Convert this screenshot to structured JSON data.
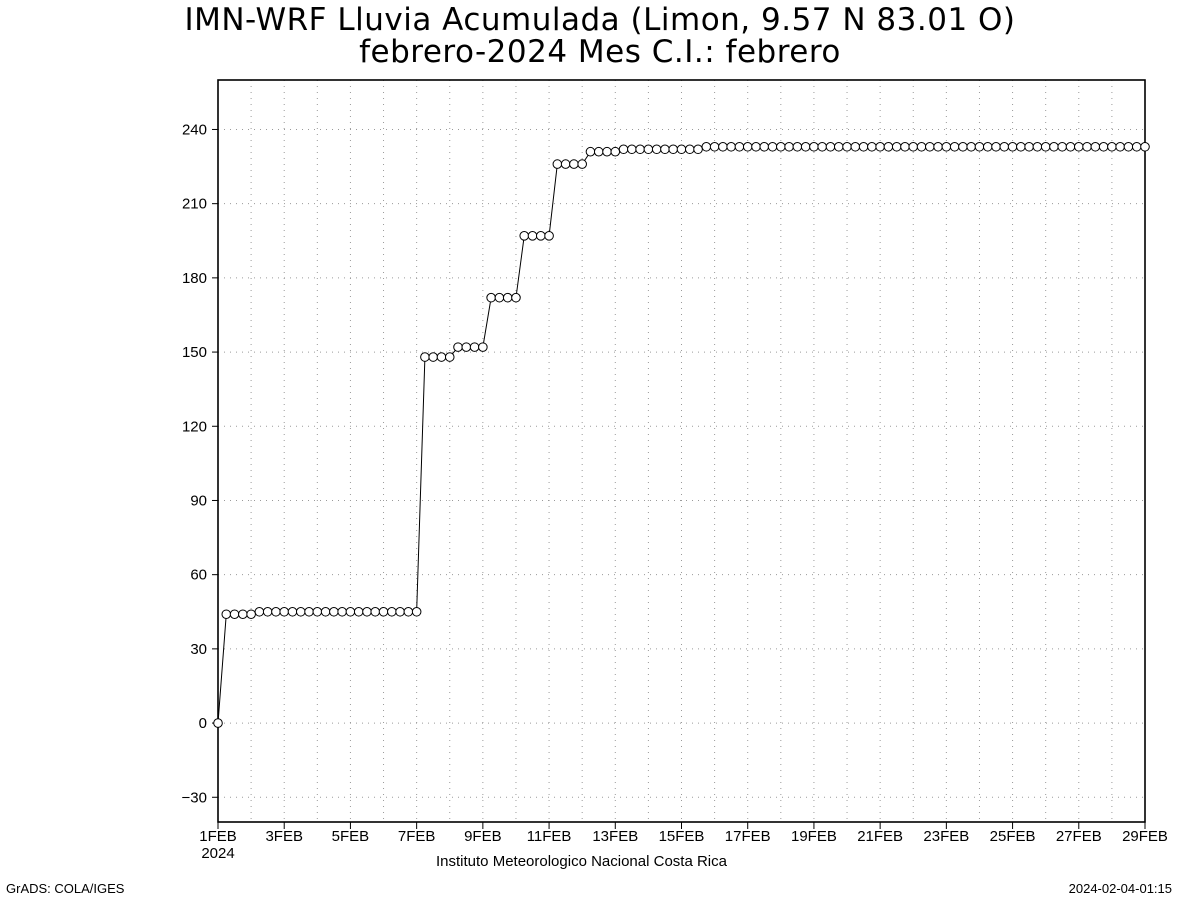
{
  "title_line1": "IMN-WRF  Lluvia Acumulada (Limon, 9.57  N 83.01  O)",
  "title_line2": "febrero-2024 Mes C.I.: febrero",
  "footer_source": "Instituto Meteorologico Nacional Costa Rica",
  "footer_grads": "GrADS: COLA/IGES",
  "footer_timestamp": "2024-02-04-01:15",
  "chart_data": {
    "type": "line",
    "title": "IMN-WRF  Lluvia Acumulada (Limon, 9.57  N 83.01  O)",
    "subtitle": "febrero-2024 Mes C.I.: febrero",
    "xlabel": "",
    "ylabel": "",
    "x_unit": "days since 1FEB 2024 00Z, 6-hourly steps",
    "xlim": [
      1,
      29
    ],
    "ylim": [
      -40,
      260
    ],
    "grid": true,
    "marker": "open-circle",
    "line_color": "#000000",
    "x_ticks": [
      "1FEB",
      "3FEB",
      "5FEB",
      "7FEB",
      "9FEB",
      "11FEB",
      "13FEB",
      "15FEB",
      "17FEB",
      "19FEB",
      "21FEB",
      "23FEB",
      "25FEB",
      "27FEB",
      "29FEB"
    ],
    "x_tick_year": "2024",
    "y_ticks": [
      -30,
      0,
      30,
      60,
      90,
      120,
      150,
      180,
      210,
      240
    ],
    "series": [
      {
        "name": "",
        "values": [
          0,
          44,
          44,
          44,
          44,
          45,
          45,
          45,
          45,
          45,
          45,
          45,
          45,
          45,
          45,
          45,
          45,
          45,
          45,
          45,
          45,
          45,
          45,
          45,
          45,
          148,
          148,
          148,
          148,
          152,
          152,
          152,
          152,
          172,
          172,
          172,
          172,
          197,
          197,
          197,
          197,
          226,
          226,
          226,
          226,
          231,
          231,
          231,
          231,
          232,
          232,
          232,
          232,
          232,
          232,
          232,
          232,
          232,
          232,
          233,
          233,
          233,
          233,
          233,
          233,
          233,
          233,
          233,
          233,
          233,
          233,
          233,
          233,
          233,
          233,
          233,
          233,
          233,
          233,
          233,
          233,
          233,
          233,
          233,
          233,
          233,
          233,
          233,
          233,
          233,
          233,
          233,
          233,
          233,
          233,
          233,
          233,
          233,
          233,
          233,
          233,
          233,
          233,
          233,
          233,
          233,
          233,
          233,
          233,
          233,
          233,
          233,
          233
        ]
      }
    ]
  }
}
